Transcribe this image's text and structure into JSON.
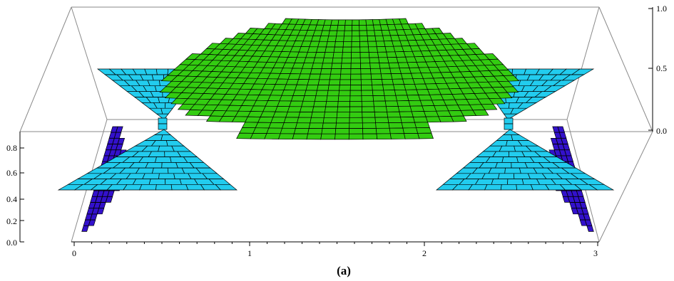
{
  "figure": {
    "caption": "(a)",
    "colors": {
      "top_surface": "#33cc11",
      "middle_layer": "#22ccee",
      "bottom_layer": "#3311cc",
      "box": "#8a8a8a"
    },
    "axes": {
      "x_ticks": [
        "0",
        "1",
        "2",
        "3"
      ],
      "z_left_ticks": [
        "0.0",
        "0.2",
        "0.4",
        "0.6",
        "0.8"
      ],
      "z_right_ticks": [
        "0.0",
        "0.5",
        "1.0"
      ]
    },
    "layers": [
      {
        "name": "top-surface",
        "z": 1.0
      },
      {
        "name": "middle-layer",
        "z": 0.5
      },
      {
        "name": "bottom-layer",
        "z": 0.0
      }
    ]
  }
}
